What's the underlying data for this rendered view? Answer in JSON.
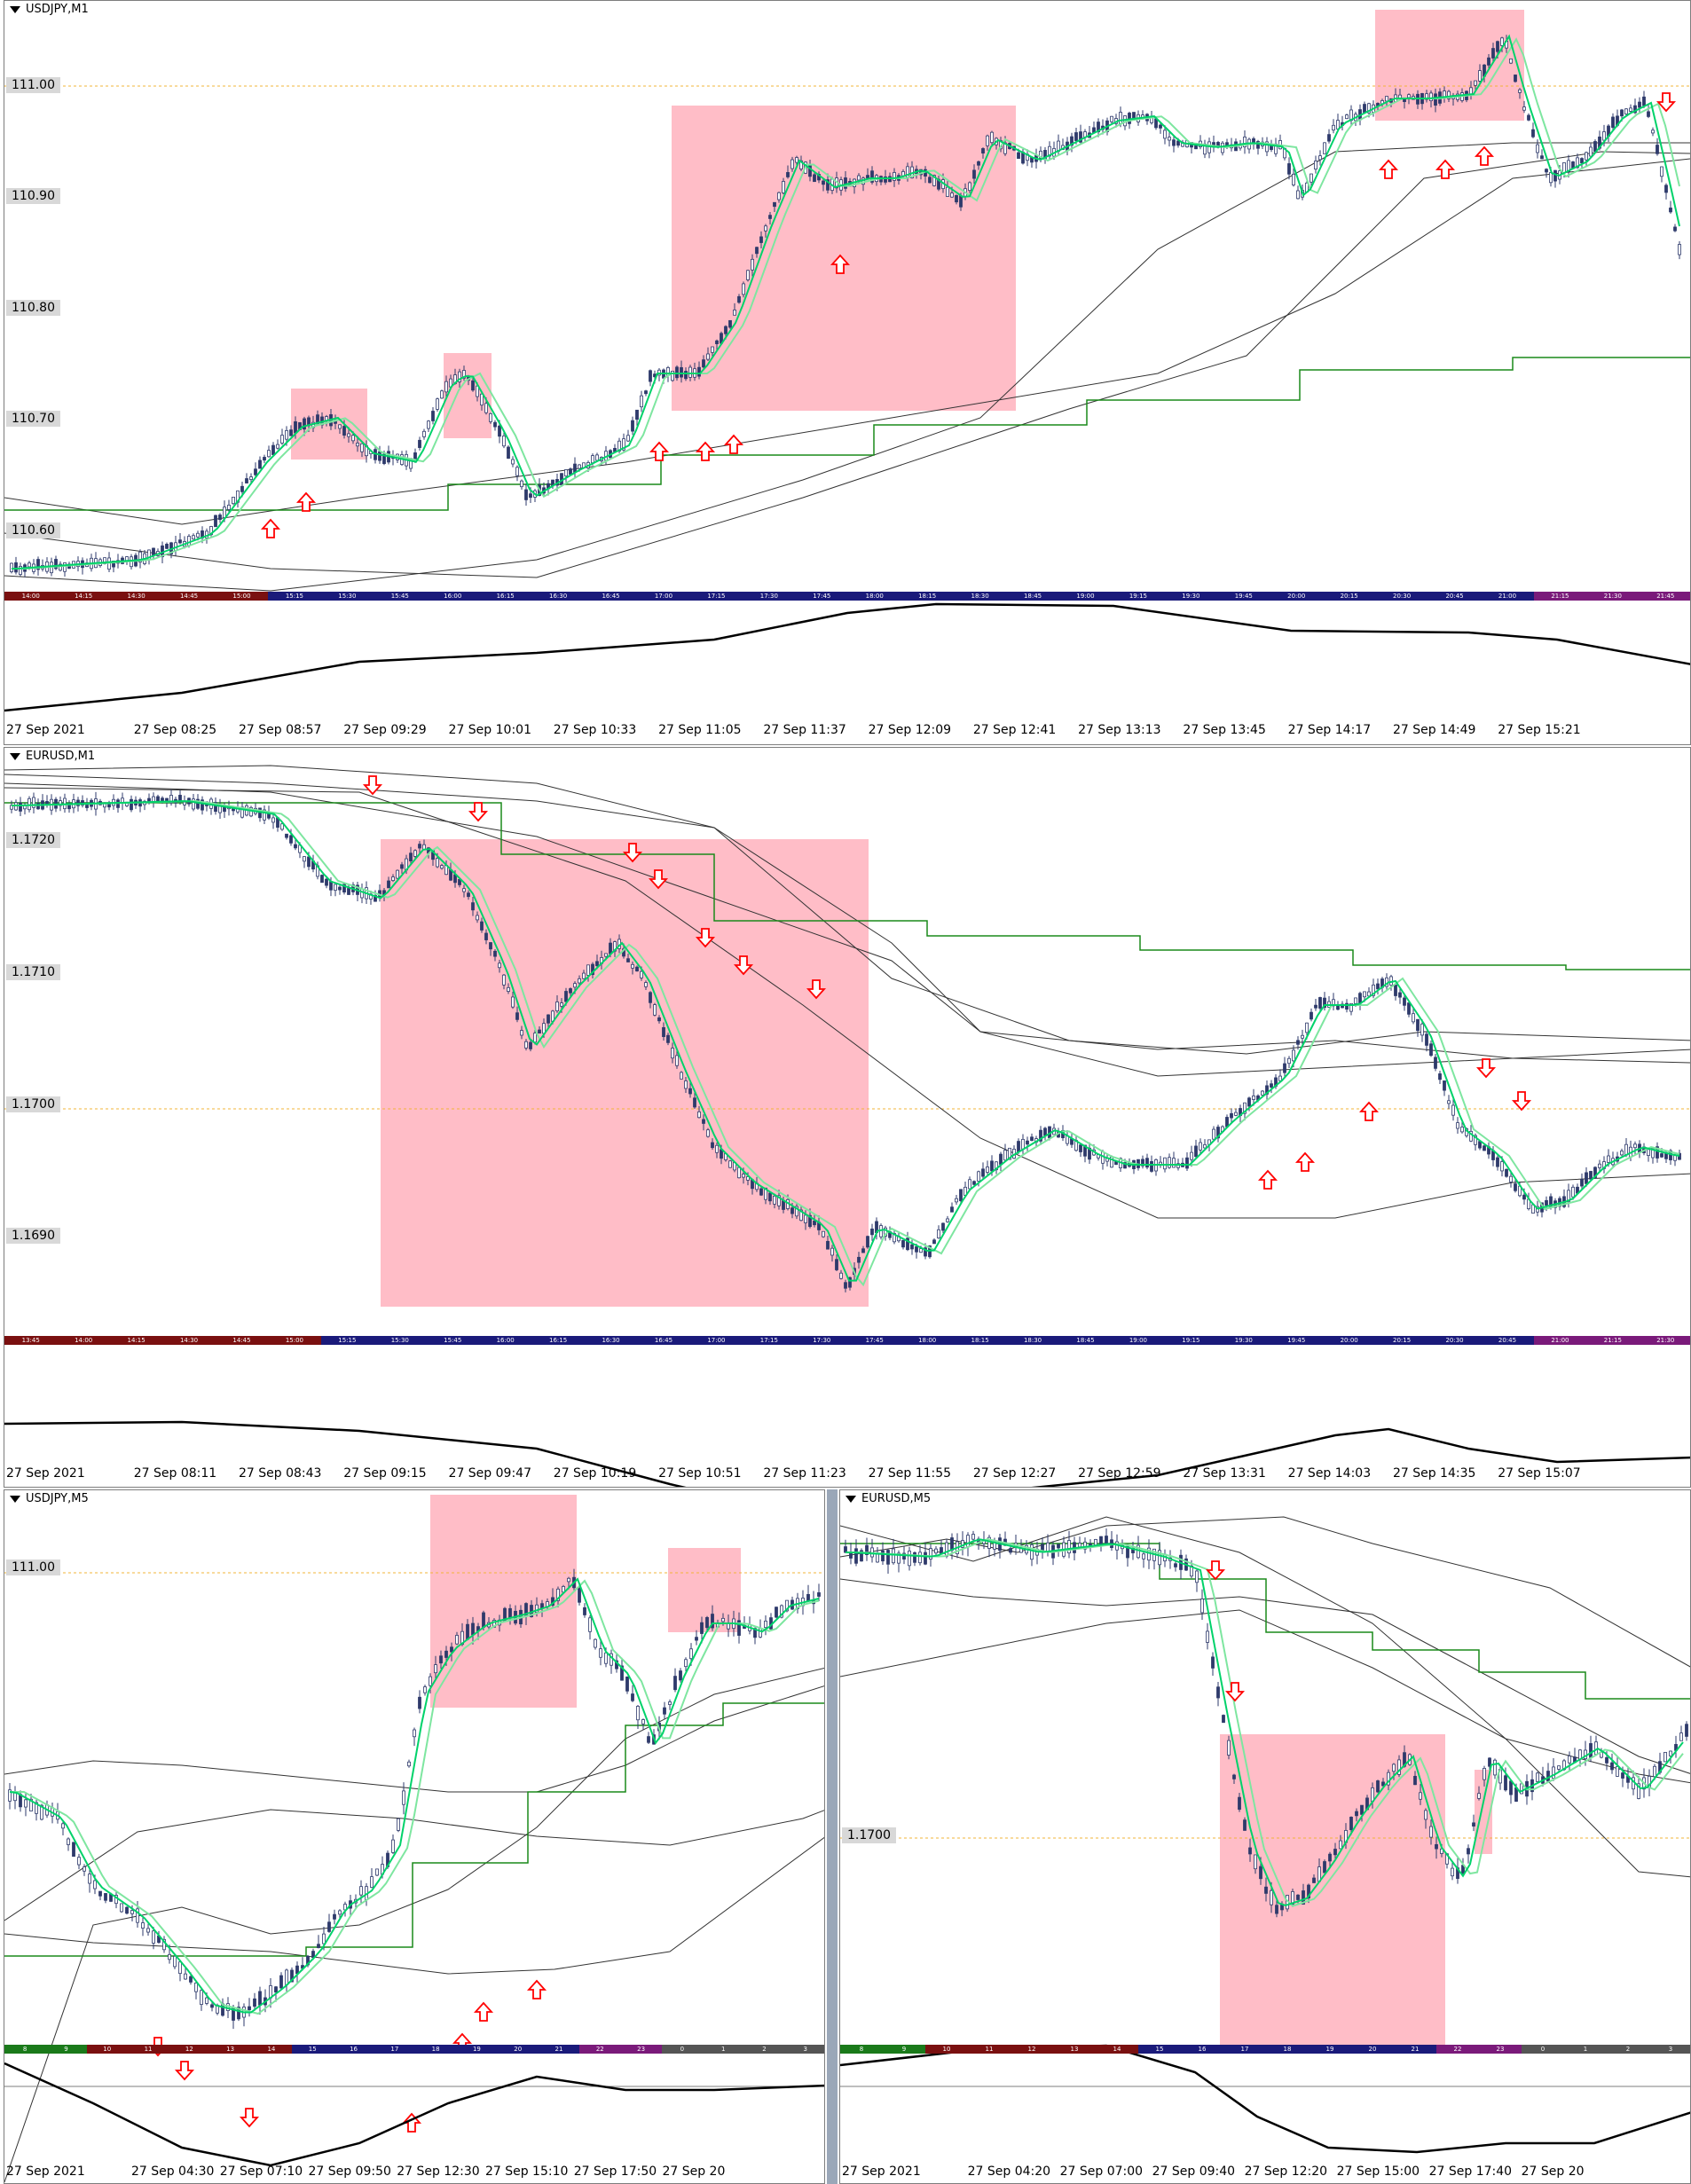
{
  "colors": {
    "candle": "#2e3a6b",
    "ma_fast": "#00d26a",
    "ma_slow": "#7ee6a0",
    "ma_long": "#333333",
    "step": "#1a8a1a",
    "zone": "#ffb6c1",
    "arrow": "#ff0000",
    "level": "#f2b43a",
    "osc": "#000000"
  },
  "panels": {
    "p1": {
      "title": "USDJPY,M1",
      "prices": [
        "111.00",
        "110.90",
        "110.80",
        "110.70",
        "110.60"
      ],
      "time_bar": [
        "14:00",
        "14:15",
        "14:30",
        "14:45",
        "15:00",
        "15:15",
        "15:30",
        "15:45",
        "16:00",
        "16:15",
        "16:30",
        "16:45",
        "17:00",
        "17:15",
        "17:30",
        "17:45",
        "18:00",
        "18:15",
        "18:30",
        "18:45",
        "19:00",
        "19:15",
        "19:30",
        "19:45",
        "20:00",
        "20:15",
        "20:30",
        "20:45",
        "21:00",
        "21:15",
        "21:30",
        "21:45"
      ],
      "axis": [
        "27 Sep 2021",
        "27 Sep 08:25",
        "27 Sep 08:57",
        "27 Sep 09:29",
        "27 Sep 10:01",
        "27 Sep 10:33",
        "27 Sep 11:05",
        "27 Sep 11:37",
        "27 Sep 12:09",
        "27 Sep 12:41",
        "27 Sep 13:13",
        "27 Sep 13:45",
        "27 Sep 14:17",
        "27 Sep 14:49",
        "27 Sep 15:21"
      ]
    },
    "p2": {
      "title": "EURUSD,M1",
      "prices": [
        "1.1720",
        "1.1710",
        "1.1700",
        "1.1690"
      ],
      "time_bar": [
        "13:45",
        "14:00",
        "14:15",
        "14:30",
        "14:45",
        "15:00",
        "15:15",
        "15:30",
        "15:45",
        "16:00",
        "16:15",
        "16:30",
        "16:45",
        "17:00",
        "17:15",
        "17:30",
        "17:45",
        "18:00",
        "18:15",
        "18:30",
        "18:45",
        "19:00",
        "19:15",
        "19:30",
        "19:45",
        "20:00",
        "20:15",
        "20:30",
        "20:45",
        "21:00",
        "21:15",
        "21:30"
      ],
      "axis": [
        "27 Sep 2021",
        "27 Sep 08:11",
        "27 Sep 08:43",
        "27 Sep 09:15",
        "27 Sep 09:47",
        "27 Sep 10:19",
        "27 Sep 10:51",
        "27 Sep 11:23",
        "27 Sep 11:55",
        "27 Sep 12:27",
        "27 Sep 12:59",
        "27 Sep 13:31",
        "27 Sep 14:03",
        "27 Sep 14:35",
        "27 Sep 15:07"
      ]
    },
    "p3": {
      "title": "USDJPY,M5",
      "prices": [
        "111.00"
      ],
      "time_bar": [
        "8",
        "9",
        "10",
        "11",
        "12",
        "13",
        "14",
        "15",
        "16",
        "17",
        "18",
        "19",
        "20",
        "21",
        "22",
        "23",
        "0",
        "1",
        "2",
        "3"
      ],
      "axis": [
        "27 Sep 2021",
        "27 Sep 04:30",
        "27 Sep 07:10",
        "27 Sep 09:50",
        "27 Sep 12:30",
        "27 Sep 15:10",
        "27 Sep 17:50",
        "27 Sep 20"
      ]
    },
    "p4": {
      "title": "EURUSD,M5",
      "prices": [
        "1.1700"
      ],
      "time_bar": [
        "8",
        "9",
        "10",
        "11",
        "12",
        "13",
        "14",
        "15",
        "16",
        "17",
        "18",
        "19",
        "20",
        "21",
        "22",
        "23",
        "0",
        "1",
        "2",
        "3"
      ],
      "axis": [
        "27 Sep 2021",
        "27 Sep 04:20",
        "27 Sep 07:00",
        "27 Sep 09:40",
        "27 Sep 12:20",
        "27 Sep 15:00",
        "27 Sep 17:40",
        "27 Sep 20"
      ]
    }
  }
}
